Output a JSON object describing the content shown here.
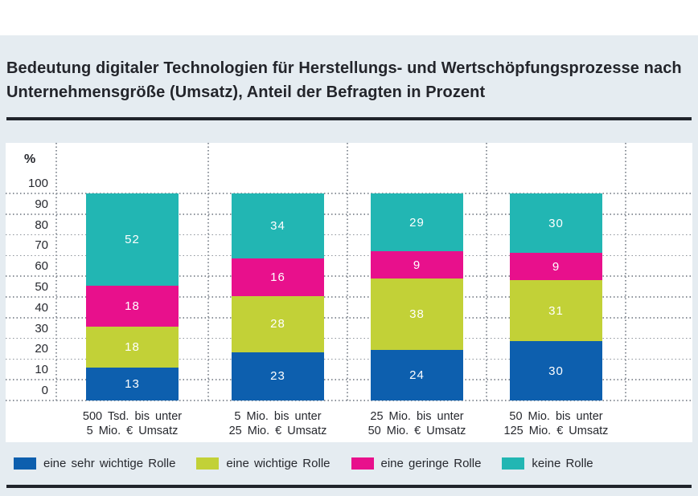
{
  "page": {
    "background": "#ffffff",
    "panel_background": "#e5ecf1",
    "rule_color": "#20242b",
    "text_color": "#26282e"
  },
  "header": {
    "title_lines": [
      "Bedeutung digitaler Technologien für Herstellungs- und Wertschöpfungsprozesse nach",
      "Unternehmensgröße (Umsatz), Anteil der Befragten in Prozent"
    ]
  },
  "chart_data": {
    "type": "bar",
    "stacked": true,
    "title": "Bedeutung digitaler Technologien für Herstellungs- und Wertschöpfungsprozesse nach Unternehmensgröße (Umsatz), Anteil der Befragten in Prozent",
    "categories": [
      [
        "500 Tsd. bis unter",
        "5 Mio. € Umsatz"
      ],
      [
        "5 Mio. bis unter",
        "25 Mio. € Umsatz"
      ],
      [
        "25 Mio. bis unter",
        "50 Mio. € Umsatz"
      ],
      [
        "50 Mio. bis unter",
        "125 Mio. € Umsatz"
      ]
    ],
    "series": [
      {
        "name": "eine sehr wichtige Rolle",
        "color": "#0d5fae",
        "values": [
          13,
          23,
          24,
          30
        ]
      },
      {
        "name": "eine wichtige Rolle",
        "color": "#c2d137",
        "values": [
          18,
          28,
          38,
          31
        ]
      },
      {
        "name": "eine geringe Rolle",
        "color": "#e8108c",
        "values": [
          18,
          16,
          9,
          9
        ]
      },
      {
        "name": "keine Rolle",
        "color": "#22b6b3",
        "values": [
          52,
          34,
          29,
          30
        ]
      }
    ],
    "y_axis": {
      "unit": "%",
      "min": 0,
      "max": 100,
      "ticks": [
        100,
        90,
        80,
        70,
        60,
        50,
        40,
        30,
        20,
        10,
        0
      ]
    },
    "grid": "dotted",
    "value_labels": "inside-white",
    "legend_position": "bottom"
  }
}
